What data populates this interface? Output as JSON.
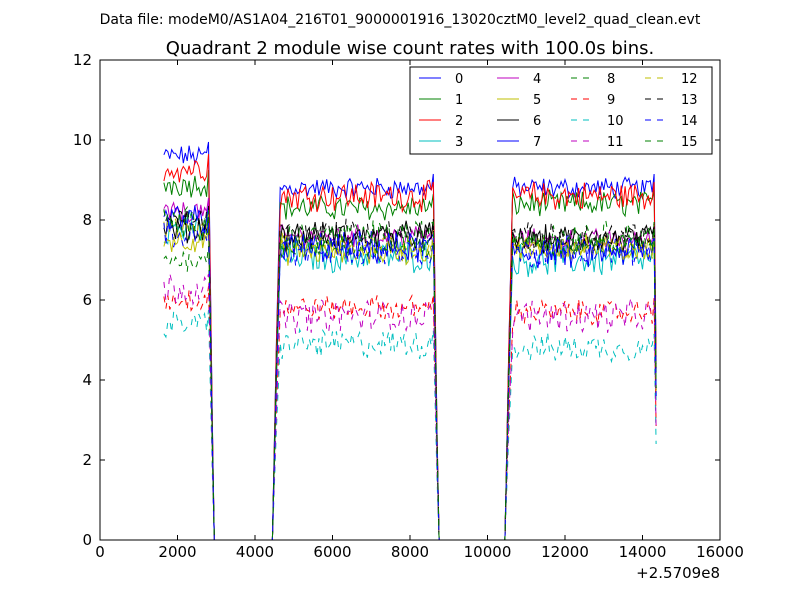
{
  "suptitle": "Data file: modeM0/AS1A04_216T01_9000001916_13020cztM0_level2_quad_clean.evt",
  "chart_data": {
    "type": "line",
    "title": "Quadrant 2 module wise count rates with 100.0s bins.",
    "xlabel": "",
    "ylabel": "",
    "x_offset_label": "+2.5709e8",
    "xlim": [
      0,
      16000
    ],
    "ylim": [
      0,
      12
    ],
    "xticks": [
      "0",
      "2000",
      "4000",
      "6000",
      "8000",
      "10000",
      "12000",
      "14000",
      "16000"
    ],
    "yticks": [
      "0",
      "2",
      "4",
      "6",
      "8",
      "10",
      "12"
    ],
    "legend_position": "top-right",
    "legend_columns": 4,
    "segments": [
      {
        "x_start": 1650,
        "x_end": 2750
      },
      {
        "x_start": 4650,
        "x_end": 8550
      },
      {
        "x_start": 10650,
        "x_end": 14250
      }
    ],
    "gaps": [
      [
        2950,
        4450
      ],
      [
        8750,
        10350
      ]
    ],
    "series": [
      {
        "name": "0",
        "color": "#0000ff",
        "dash": "solid",
        "base": [
          9.6,
          8.8,
          8.8
        ]
      },
      {
        "name": "1",
        "color": "#008000",
        "dash": "solid",
        "base": [
          8.9,
          8.3,
          8.4
        ]
      },
      {
        "name": "2",
        "color": "#ff0000",
        "dash": "solid",
        "base": [
          9.3,
          8.6,
          8.6
        ]
      },
      {
        "name": "3",
        "color": "#00bfbf",
        "dash": "solid",
        "base": [
          7.8,
          7.1,
          7.0
        ]
      },
      {
        "name": "4",
        "color": "#bf00bf",
        "dash": "solid",
        "base": [
          8.2,
          7.6,
          7.5
        ]
      },
      {
        "name": "5",
        "color": "#bfbf00",
        "dash": "solid",
        "base": [
          7.5,
          7.2,
          7.3
        ]
      },
      {
        "name": "6",
        "color": "#000000",
        "dash": "solid",
        "base": [
          7.8,
          7.6,
          7.5
        ]
      },
      {
        "name": "7",
        "color": "#0000ff",
        "dash": "solid",
        "base": [
          8.0,
          7.3,
          7.2
        ]
      },
      {
        "name": "8",
        "color": "#008000",
        "dash": "dashed",
        "base": [
          7.0,
          7.3,
          7.4
        ]
      },
      {
        "name": "9",
        "color": "#ff0000",
        "dash": "dashed",
        "base": [
          6.0,
          5.8,
          5.7
        ]
      },
      {
        "name": "10",
        "color": "#00bfbf",
        "dash": "dashed",
        "base": [
          5.4,
          4.9,
          4.8
        ]
      },
      {
        "name": "11",
        "color": "#bf00bf",
        "dash": "dashed",
        "base": [
          6.3,
          5.6,
          5.6
        ]
      },
      {
        "name": "12",
        "color": "#bfbf00",
        "dash": "dashed",
        "base": [
          7.8,
          7.4,
          7.3
        ]
      },
      {
        "name": "13",
        "color": "#000000",
        "dash": "dashed",
        "base": [
          8.0,
          7.7,
          7.6
        ]
      },
      {
        "name": "14",
        "color": "#0000ff",
        "dash": "dashed",
        "base": [
          7.6,
          7.2,
          7.2
        ]
      },
      {
        "name": "15",
        "color": "#008000",
        "dash": "dashed",
        "base": [
          7.9,
          7.6,
          7.6
        ]
      }
    ]
  }
}
